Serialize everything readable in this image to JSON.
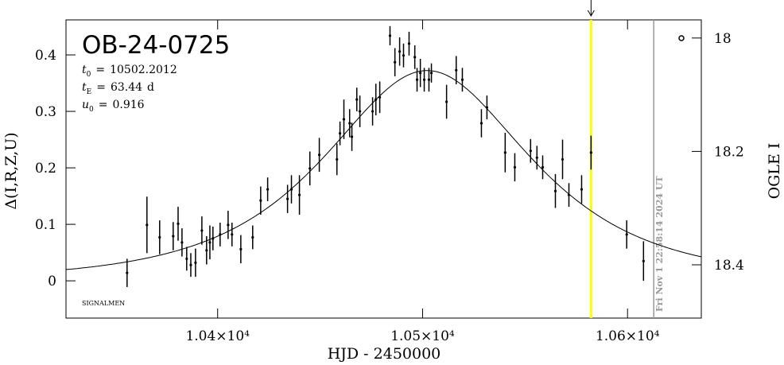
{
  "chart_data": {
    "type": "scatter",
    "title": "OB-24-0725",
    "xlabel": "HJD - 2450000",
    "ylabel": "Δ(I,R,Z,U)",
    "y2label": "OGLE I",
    "footnote": "SIGNALMEN",
    "color": "#000000",
    "curve_color": "#000000",
    "model": [
      {
        "name": "t",
        "sub": "0",
        "sep": "=",
        "value": 10502.2012
      },
      {
        "name": "t",
        "sub": "E",
        "sep": "=",
        "value": 63.44,
        "unit": "d"
      },
      {
        "name": "u",
        "sub": "0",
        "sep": "=",
        "value": 0.916
      }
    ],
    "xlim": [
      10326,
      10636
    ],
    "ylim": [
      -0.066,
      0.462
    ],
    "y2lim": [
      18.494,
      17.968
    ],
    "xticks": [
      {
        "value": 10400,
        "label": "1.04×10⁴"
      },
      {
        "value": 10500,
        "label": "1.05×10⁴"
      },
      {
        "value": 10600,
        "label": "1.06×10⁴"
      }
    ],
    "yticks": [
      0,
      0.1,
      0.2,
      0.3,
      0.4
    ],
    "y2ticks": [
      18,
      18.2,
      18.4
    ],
    "markers": [
      {
        "x": 10582.2,
        "color": "#ffff00"
      },
      {
        "x": 10612.8,
        "color": "#999999",
        "label": "Fri Nov  1 22:58:14 2024 UT"
      }
    ],
    "x": [
      10355.8,
      10365.5,
      10371.7,
      10378.3,
      10380.7,
      10382.6,
      10384.9,
      10386.9,
      10389.2,
      10392.3,
      10394.6,
      10396.2,
      10397.7,
      10401.2,
      10405.1,
      10407.0,
      10411.3,
      10417.1,
      10421.0,
      10424.4,
      10434.1,
      10436.0,
      10439.9,
      10445.0,
      10449.6,
      10458.2,
      10459.7,
      10461.6,
      10464.4,
      10465.5,
      10467.9,
      10469.4,
      10475.6,
      10477.2,
      10479.1,
      10484.1,
      10486.5,
      10488.8,
      10490.7,
      10493.4,
      10496.2,
      10497.3,
      10498.9,
      10500.8,
      10503.1,
      10504.3,
      10511.7,
      10516.4,
      10519.4,
      10528.7,
      10531.4,
      10540.3,
      10545.0,
      10552.7,
      10555.8,
      10558.6,
      10564.8,
      10568.3,
      10571.4,
      10577.6,
      10582.2,
      10599.6,
      10607.8
    ],
    "values": [
      0.014,
      0.099,
      0.077,
      0.079,
      0.101,
      0.068,
      0.039,
      0.028,
      0.032,
      0.089,
      0.054,
      0.068,
      0.075,
      0.082,
      0.099,
      0.082,
      0.056,
      0.077,
      0.142,
      0.162,
      0.145,
      0.162,
      0.152,
      0.199,
      0.223,
      0.215,
      0.261,
      0.286,
      0.279,
      0.255,
      0.321,
      0.3,
      0.3,
      0.321,
      0.325,
      0.434,
      0.387,
      0.406,
      0.399,
      0.42,
      0.396,
      0.356,
      0.368,
      0.356,
      0.356,
      0.368,
      0.317,
      0.373,
      0.356,
      0.279,
      0.307,
      0.227,
      0.201,
      0.23,
      0.218,
      0.201,
      0.159,
      0.215,
      0.152,
      0.162,
      0.227,
      0.082,
      0.035
    ],
    "errors": [
      0.025,
      0.05,
      0.03,
      0.025,
      0.03,
      0.025,
      0.021,
      0.021,
      0.025,
      0.025,
      0.025,
      0.03,
      0.021,
      0.021,
      0.025,
      0.021,
      0.025,
      0.021,
      0.025,
      0.021,
      0.025,
      0.025,
      0.035,
      0.03,
      0.03,
      0.028,
      0.021,
      0.035,
      0.025,
      0.025,
      0.021,
      0.028,
      0.025,
      0.028,
      0.028,
      0.017,
      0.025,
      0.025,
      0.021,
      0.021,
      0.021,
      0.021,
      0.025,
      0.021,
      0.021,
      0.017,
      0.03,
      0.025,
      0.021,
      0.025,
      0.021,
      0.035,
      0.025,
      0.021,
      0.021,
      0.021,
      0.03,
      0.035,
      0.021,
      0.025,
      0.03,
      0.025,
      0.035
    ]
  }
}
